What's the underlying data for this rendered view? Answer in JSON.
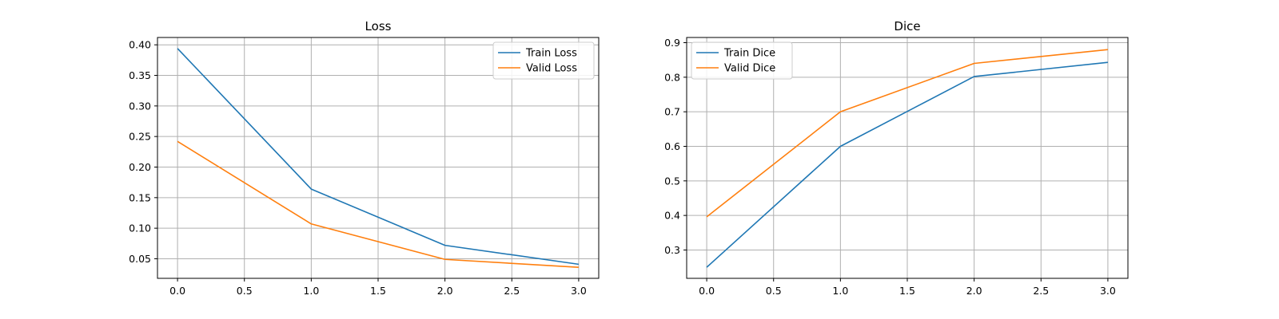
{
  "chart_data": [
    {
      "type": "line",
      "title": "Loss",
      "xlabel": "",
      "ylabel": "",
      "x": [
        0,
        1,
        2,
        3
      ],
      "xlim": [
        -0.15,
        3.15
      ],
      "ylim": [
        0.018,
        0.412
      ],
      "xticks": [
        0.0,
        0.5,
        1.0,
        1.5,
        2.0,
        2.5,
        3.0
      ],
      "xtick_labels": [
        "0.0",
        "0.5",
        "1.0",
        "1.5",
        "2.0",
        "2.5",
        "3.0"
      ],
      "yticks": [
        0.05,
        0.1,
        0.15,
        0.2,
        0.25,
        0.3,
        0.35,
        0.4
      ],
      "ytick_labels": [
        "0.05",
        "0.10",
        "0.15",
        "0.20",
        "0.25",
        "0.30",
        "0.35",
        "0.40"
      ],
      "grid": true,
      "legend_position": "top-right",
      "series": [
        {
          "name": "Train Loss",
          "color": "#1f77b4",
          "values": [
            0.394,
            0.164,
            0.072,
            0.041
          ]
        },
        {
          "name": "Valid Loss",
          "color": "#ff7f0e",
          "values": [
            0.242,
            0.107,
            0.049,
            0.036
          ]
        }
      ]
    },
    {
      "type": "line",
      "title": "Dice",
      "xlabel": "",
      "ylabel": "",
      "x": [
        0,
        1,
        2,
        3
      ],
      "xlim": [
        -0.15,
        3.15
      ],
      "ylim": [
        0.218,
        0.915
      ],
      "xticks": [
        0.0,
        0.5,
        1.0,
        1.5,
        2.0,
        2.5,
        3.0
      ],
      "xtick_labels": [
        "0.0",
        "0.5",
        "1.0",
        "1.5",
        "2.0",
        "2.5",
        "3.0"
      ],
      "yticks": [
        0.3,
        0.4,
        0.5,
        0.6,
        0.7,
        0.8,
        0.9
      ],
      "ytick_labels": [
        "0.3",
        "0.4",
        "0.5",
        "0.6",
        "0.7",
        "0.8",
        "0.9"
      ],
      "grid": true,
      "legend_position": "top-left",
      "series": [
        {
          "name": "Train Dice",
          "color": "#1f77b4",
          "values": [
            0.25,
            0.6,
            0.802,
            0.843
          ]
        },
        {
          "name": "Valid Dice",
          "color": "#ff7f0e",
          "values": [
            0.396,
            0.7,
            0.84,
            0.88
          ]
        }
      ]
    }
  ]
}
